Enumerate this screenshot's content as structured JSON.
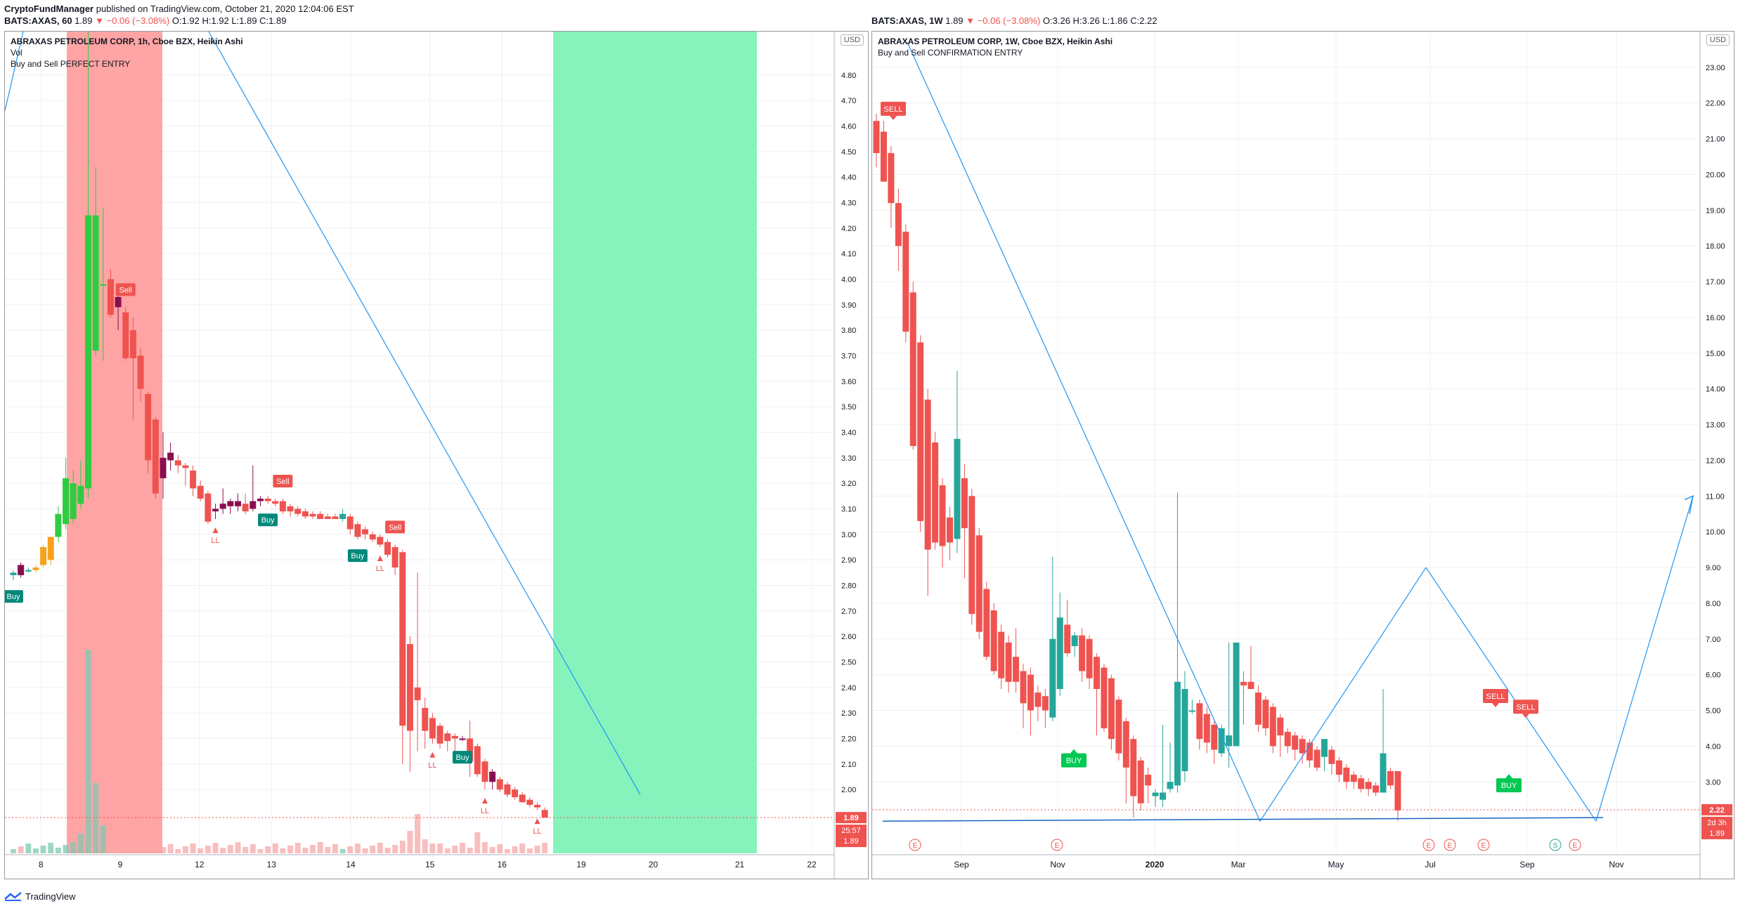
{
  "header": {
    "publisher": "CryptoFundManager",
    "published_text": "published on TradingView.com, October 21, 2020 12:04:06 EST",
    "symbol": "BATS:AXAS, 60",
    "last": "1.89",
    "change": "▼ −0.06 (−3.08%)",
    "ohlc": "O:1.92 H:1.92 L:1.89 C:1.89"
  },
  "footer": {
    "brand": "TradingView"
  },
  "left_panel": {
    "legend_title": "ABRAXAS PETROLEUM CORP, 1h, Cboe BZX, Heikin Ashi",
    "legend_vol": "Vol",
    "legend_indicator": "Buy and Sell PERFECT ENTRY",
    "currency": "USD",
    "price_tag": "1.89",
    "countdown": "25:57",
    "price_tag2": "1.89"
  },
  "right_panel": {
    "symbol_line": "BATS:AXAS, 1W",
    "last": "1.89",
    "change": "▼ −0.06 (−3.08%)",
    "ohlc": "O:3.26 H:3.26 L:1.86 C:2.22",
    "legend_title": "ABRAXAS PETROLEUM CORP, 1W, Cboe BZX, Heikin Ashi",
    "legend_indicator": "Buy and Sell CONFIRMATION ENTRY",
    "currency": "USD",
    "price_tag": "2.22",
    "countdown": "2d 3h",
    "price_tag2": "1.89"
  },
  "colors": {
    "up": "#26a69a",
    "down": "#ef5350",
    "bull_green": "#2ecc40",
    "orange": "#f7a21b",
    "maroon": "#880e4f",
    "red_zone": "#ff9a9a",
    "green_zone": "#7ff2b9",
    "trend": "#2196f3"
  },
  "chart_data": [
    {
      "type": "candlestick",
      "title": "ABRAXAS PETROLEUM CORP, 1h, Cboe BZX, Heikin Ashi",
      "ylim": [
        1.75,
        4.97
      ],
      "y_ticks": [
        2.0,
        2.1,
        2.2,
        2.3,
        2.4,
        2.5,
        2.6,
        2.7,
        2.8,
        2.9,
        3.0,
        3.1,
        3.2,
        3.3,
        3.4,
        3.5,
        3.6,
        3.7,
        3.8,
        3.9,
        4.0,
        4.1,
        4.2,
        4.3,
        4.4,
        4.5,
        4.6,
        4.7,
        4.8
      ],
      "x_ticks": [
        "8",
        "9",
        "12",
        "13",
        "14",
        "15",
        "16",
        "19",
        "20",
        "21",
        "22"
      ],
      "candles": [
        {
          "o": 2.84,
          "h": 2.86,
          "l": 2.82,
          "c": 2.85,
          "col": "up"
        },
        {
          "o": 2.84,
          "h": 2.89,
          "l": 2.83,
          "c": 2.88,
          "col": "maroon"
        },
        {
          "o": 2.86,
          "h": 2.87,
          "l": 2.85,
          "c": 2.86,
          "col": "up"
        },
        {
          "o": 2.86,
          "h": 2.88,
          "l": 2.85,
          "c": 2.87,
          "col": "orange"
        },
        {
          "o": 2.88,
          "h": 2.96,
          "l": 2.87,
          "c": 2.95,
          "col": "orange"
        },
        {
          "o": 2.9,
          "h": 2.99,
          "l": 2.88,
          "c": 2.99,
          "col": "orange"
        },
        {
          "o": 2.99,
          "h": 3.11,
          "l": 2.97,
          "c": 3.08,
          "col": "bull_green"
        },
        {
          "o": 3.04,
          "h": 3.3,
          "l": 3.02,
          "c": 3.22,
          "col": "bull_green"
        },
        {
          "o": 3.06,
          "h": 3.25,
          "l": 3.04,
          "c": 3.2,
          "col": "bull_green"
        },
        {
          "o": 3.12,
          "h": 3.29,
          "l": 3.1,
          "c": 3.19,
          "col": "bull_green"
        },
        {
          "o": 3.18,
          "h": 4.97,
          "l": 3.14,
          "c": 4.25,
          "col": "bull_green"
        },
        {
          "o": 3.72,
          "h": 4.44,
          "l": 3.7,
          "c": 4.25,
          "col": "bull_green"
        },
        {
          "o": 3.98,
          "h": 4.28,
          "l": 3.68,
          "c": 3.98,
          "col": "bull_green"
        },
        {
          "o": 4.0,
          "h": 4.04,
          "l": 3.85,
          "c": 3.86,
          "col": "down"
        },
        {
          "o": 3.93,
          "h": 3.95,
          "l": 3.8,
          "c": 3.89,
          "col": "maroon"
        },
        {
          "o": 3.87,
          "h": 3.89,
          "l": 3.68,
          "c": 3.69,
          "col": "down"
        },
        {
          "o": 3.8,
          "h": 3.85,
          "l": 3.45,
          "c": 3.69,
          "col": "down"
        },
        {
          "o": 3.7,
          "h": 3.73,
          "l": 3.52,
          "c": 3.57,
          "col": "down"
        },
        {
          "o": 3.55,
          "h": 3.56,
          "l": 3.24,
          "c": 3.29,
          "col": "down"
        },
        {
          "o": 3.45,
          "h": 3.46,
          "l": 3.14,
          "c": 3.16,
          "col": "down"
        },
        {
          "o": 3.3,
          "h": 3.4,
          "l": 3.14,
          "c": 3.22,
          "col": "maroon"
        },
        {
          "o": 3.32,
          "h": 3.36,
          "l": 3.25,
          "c": 3.29,
          "col": "maroon"
        },
        {
          "o": 3.29,
          "h": 3.31,
          "l": 3.24,
          "c": 3.27,
          "col": "down"
        },
        {
          "o": 3.27,
          "h": 3.28,
          "l": 3.19,
          "c": 3.26,
          "col": "down"
        },
        {
          "o": 3.25,
          "h": 3.27,
          "l": 3.15,
          "c": 3.18,
          "col": "down"
        },
        {
          "o": 3.19,
          "h": 3.21,
          "l": 3.13,
          "c": 3.14,
          "col": "down"
        },
        {
          "o": 3.16,
          "h": 3.17,
          "l": 3.04,
          "c": 3.05,
          "col": "down"
        },
        {
          "o": 3.1,
          "h": 3.12,
          "l": 3.06,
          "c": 3.09,
          "col": "maroon"
        },
        {
          "o": 3.1,
          "h": 3.18,
          "l": 3.08,
          "c": 3.12,
          "col": "maroon"
        },
        {
          "o": 3.11,
          "h": 3.14,
          "l": 3.08,
          "c": 3.13,
          "col": "maroon"
        },
        {
          "o": 3.13,
          "h": 3.16,
          "l": 3.09,
          "c": 3.11,
          "col": "maroon"
        },
        {
          "o": 3.12,
          "h": 3.16,
          "l": 3.08,
          "c": 3.09,
          "col": "down"
        },
        {
          "o": 3.1,
          "h": 3.27,
          "l": 3.09,
          "c": 3.13,
          "col": "maroon"
        },
        {
          "o": 3.13,
          "h": 3.15,
          "l": 3.11,
          "c": 3.14,
          "col": "maroon"
        },
        {
          "o": 3.14,
          "h": 3.15,
          "l": 3.12,
          "c": 3.13,
          "col": "down"
        },
        {
          "o": 3.13,
          "h": 3.14,
          "l": 3.11,
          "c": 3.12,
          "col": "down"
        },
        {
          "o": 3.13,
          "h": 3.14,
          "l": 3.08,
          "c": 3.09,
          "col": "down"
        },
        {
          "o": 3.11,
          "h": 3.12,
          "l": 3.07,
          "c": 3.09,
          "col": "down"
        },
        {
          "o": 3.1,
          "h": 3.11,
          "l": 3.07,
          "c": 3.08,
          "col": "down"
        },
        {
          "o": 3.09,
          "h": 3.1,
          "l": 3.06,
          "c": 3.07,
          "col": "down"
        },
        {
          "o": 3.08,
          "h": 3.09,
          "l": 3.06,
          "c": 3.07,
          "col": "down"
        },
        {
          "o": 3.08,
          "h": 3.09,
          "l": 3.06,
          "c": 3.06,
          "col": "down"
        },
        {
          "o": 3.07,
          "h": 3.08,
          "l": 3.06,
          "c": 3.06,
          "col": "down"
        },
        {
          "o": 3.07,
          "h": 3.08,
          "l": 3.06,
          "c": 3.06,
          "col": "down"
        },
        {
          "o": 3.08,
          "h": 3.1,
          "l": 3.05,
          "c": 3.06,
          "col": "up"
        },
        {
          "o": 3.07,
          "h": 3.08,
          "l": 3.0,
          "c": 3.02,
          "col": "down"
        },
        {
          "o": 3.04,
          "h": 3.05,
          "l": 2.98,
          "c": 2.99,
          "col": "down"
        },
        {
          "o": 3.02,
          "h": 3.03,
          "l": 2.98,
          "c": 3.0,
          "col": "down"
        },
        {
          "o": 3.0,
          "h": 3.01,
          "l": 2.97,
          "c": 2.98,
          "col": "down"
        },
        {
          "o": 2.99,
          "h": 3.0,
          "l": 2.95,
          "c": 2.96,
          "col": "down"
        },
        {
          "o": 2.97,
          "h": 2.98,
          "l": 2.91,
          "c": 2.92,
          "col": "down"
        },
        {
          "o": 2.95,
          "h": 2.96,
          "l": 2.84,
          "c": 2.87,
          "col": "down"
        },
        {
          "o": 2.93,
          "h": 2.94,
          "l": 2.1,
          "c": 2.25,
          "col": "down"
        },
        {
          "o": 2.57,
          "h": 2.6,
          "l": 2.07,
          "c": 2.23,
          "col": "down"
        },
        {
          "o": 2.4,
          "h": 2.85,
          "l": 2.15,
          "c": 2.35,
          "col": "down"
        },
        {
          "o": 2.32,
          "h": 2.36,
          "l": 2.16,
          "c": 2.23,
          "col": "down"
        },
        {
          "o": 2.28,
          "h": 2.3,
          "l": 2.18,
          "c": 2.2,
          "col": "down"
        },
        {
          "o": 2.25,
          "h": 2.26,
          "l": 2.16,
          "c": 2.18,
          "col": "down"
        },
        {
          "o": 2.22,
          "h": 2.23,
          "l": 2.15,
          "c": 2.19,
          "col": "down"
        },
        {
          "o": 2.21,
          "h": 2.22,
          "l": 2.13,
          "c": 2.2,
          "col": "down"
        },
        {
          "o": 2.2,
          "h": 2.21,
          "l": 2.19,
          "c": 2.2,
          "col": "maroon"
        },
        {
          "o": 2.2,
          "h": 2.27,
          "l": 2.05,
          "c": 2.11,
          "col": "down"
        },
        {
          "o": 2.17,
          "h": 2.18,
          "l": 2.05,
          "c": 2.06,
          "col": "down"
        },
        {
          "o": 2.11,
          "h": 2.12,
          "l": 2.0,
          "c": 2.03,
          "col": "down"
        },
        {
          "o": 2.07,
          "h": 2.08,
          "l": 2.0,
          "c": 2.03,
          "col": "maroon"
        },
        {
          "o": 2.04,
          "h": 2.05,
          "l": 1.99,
          "c": 2.0,
          "col": "down"
        },
        {
          "o": 2.02,
          "h": 2.03,
          "l": 1.97,
          "c": 1.98,
          "col": "down"
        },
        {
          "o": 2.0,
          "h": 2.01,
          "l": 1.96,
          "c": 1.97,
          "col": "down"
        },
        {
          "o": 1.98,
          "h": 1.99,
          "l": 1.95,
          "c": 1.95,
          "col": "down"
        },
        {
          "o": 1.96,
          "h": 1.97,
          "l": 1.93,
          "c": 1.94,
          "col": "down"
        },
        {
          "o": 1.94,
          "h": 1.95,
          "l": 1.92,
          "c": 1.93,
          "col": "down"
        },
        {
          "o": 1.92,
          "h": 1.93,
          "l": 1.89,
          "c": 1.89,
          "col": "down"
        }
      ],
      "signals": [
        {
          "i": 0,
          "text": "Buy",
          "side": "buy"
        },
        {
          "i": 15,
          "text": "Sell",
          "side": "sell"
        },
        {
          "i": 34,
          "text": "Buy",
          "side": "buy"
        },
        {
          "i": 36,
          "text": "Sell",
          "side": "sell"
        },
        {
          "i": 46,
          "text": "Buy",
          "side": "buy"
        },
        {
          "i": 51,
          "text": "Sell",
          "side": "sell"
        },
        {
          "i": 60,
          "text": "Buy",
          "side": "buy"
        }
      ],
      "ll_marks": [
        27,
        49,
        56,
        63,
        70
      ],
      "ll_text": "LL"
    },
    {
      "type": "candlestick",
      "title": "ABRAXAS PETROLEUM CORP, 1W, Cboe BZX, Heikin Ashi",
      "ylim": [
        1.0,
        24.0
      ],
      "y_ticks": [
        3,
        4,
        5,
        6,
        7,
        8,
        9,
        10,
        11,
        12,
        13,
        14,
        15,
        16,
        17,
        18,
        19,
        20,
        21,
        22,
        23
      ],
      "x_ticks": [
        "Sep",
        "Nov",
        "2020",
        "Mar",
        "May",
        "Jul",
        "Sep",
        "Nov"
      ],
      "earnings_text": "E",
      "split_text": "S"
    }
  ]
}
